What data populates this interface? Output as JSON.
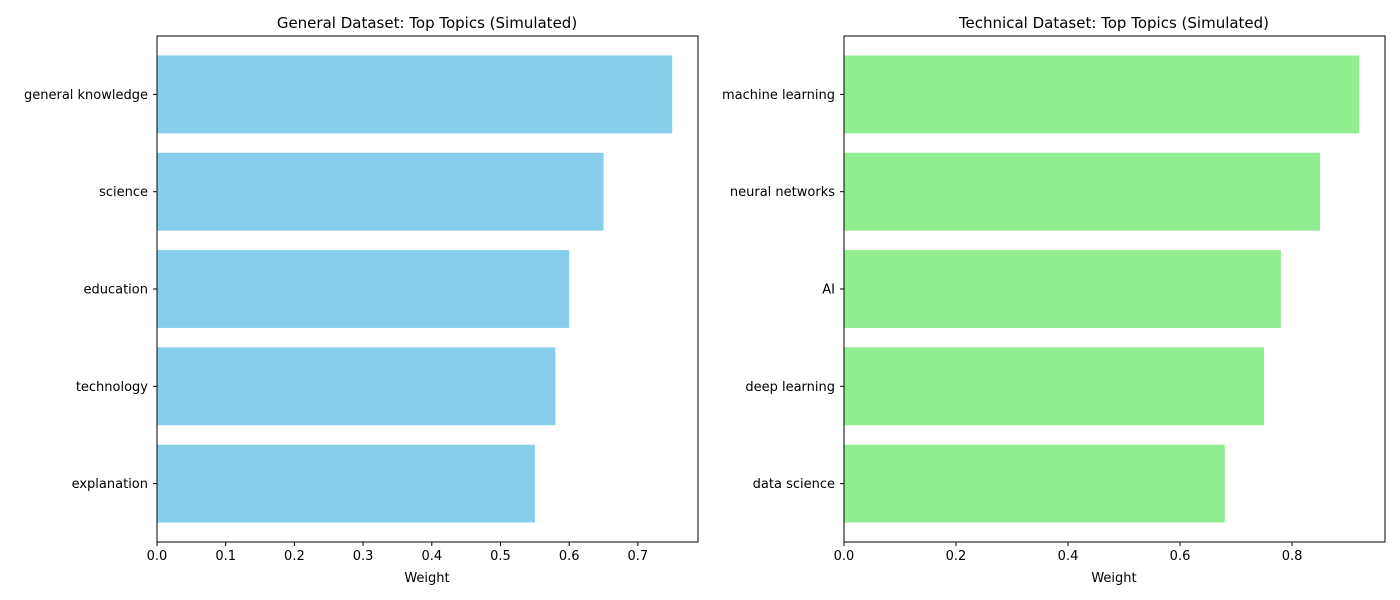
{
  "chart_data": [
    {
      "type": "bar",
      "orientation": "horizontal",
      "title": "General Dataset: Top Topics (Simulated)",
      "xlabel": "Weight",
      "ylabel": "",
      "categories": [
        "general knowledge",
        "science",
        "education",
        "technology",
        "explanation"
      ],
      "values": [
        0.75,
        0.65,
        0.6,
        0.58,
        0.55
      ],
      "color": "#87CEEB",
      "xlim": [
        0,
        0.7875
      ],
      "xticks": [
        0.0,
        0.1,
        0.2,
        0.3,
        0.4,
        0.5,
        0.6,
        0.7
      ],
      "xtick_labels": [
        "0.0",
        "0.1",
        "0.2",
        "0.3",
        "0.4",
        "0.5",
        "0.6",
        "0.7"
      ],
      "grid": false
    },
    {
      "type": "bar",
      "orientation": "horizontal",
      "title": "Technical Dataset: Top Topics (Simulated)",
      "xlabel": "Weight",
      "ylabel": "",
      "categories": [
        "machine learning",
        "neural networks",
        "AI",
        "deep learning",
        "data science"
      ],
      "values": [
        0.92,
        0.85,
        0.78,
        0.75,
        0.68
      ],
      "color": "#90EE90",
      "xlim": [
        0,
        0.966
      ],
      "xticks": [
        0.0,
        0.2,
        0.4,
        0.6,
        0.8
      ],
      "xtick_labels": [
        "0.0",
        "0.2",
        "0.4",
        "0.6",
        "0.8"
      ],
      "grid": false
    }
  ]
}
